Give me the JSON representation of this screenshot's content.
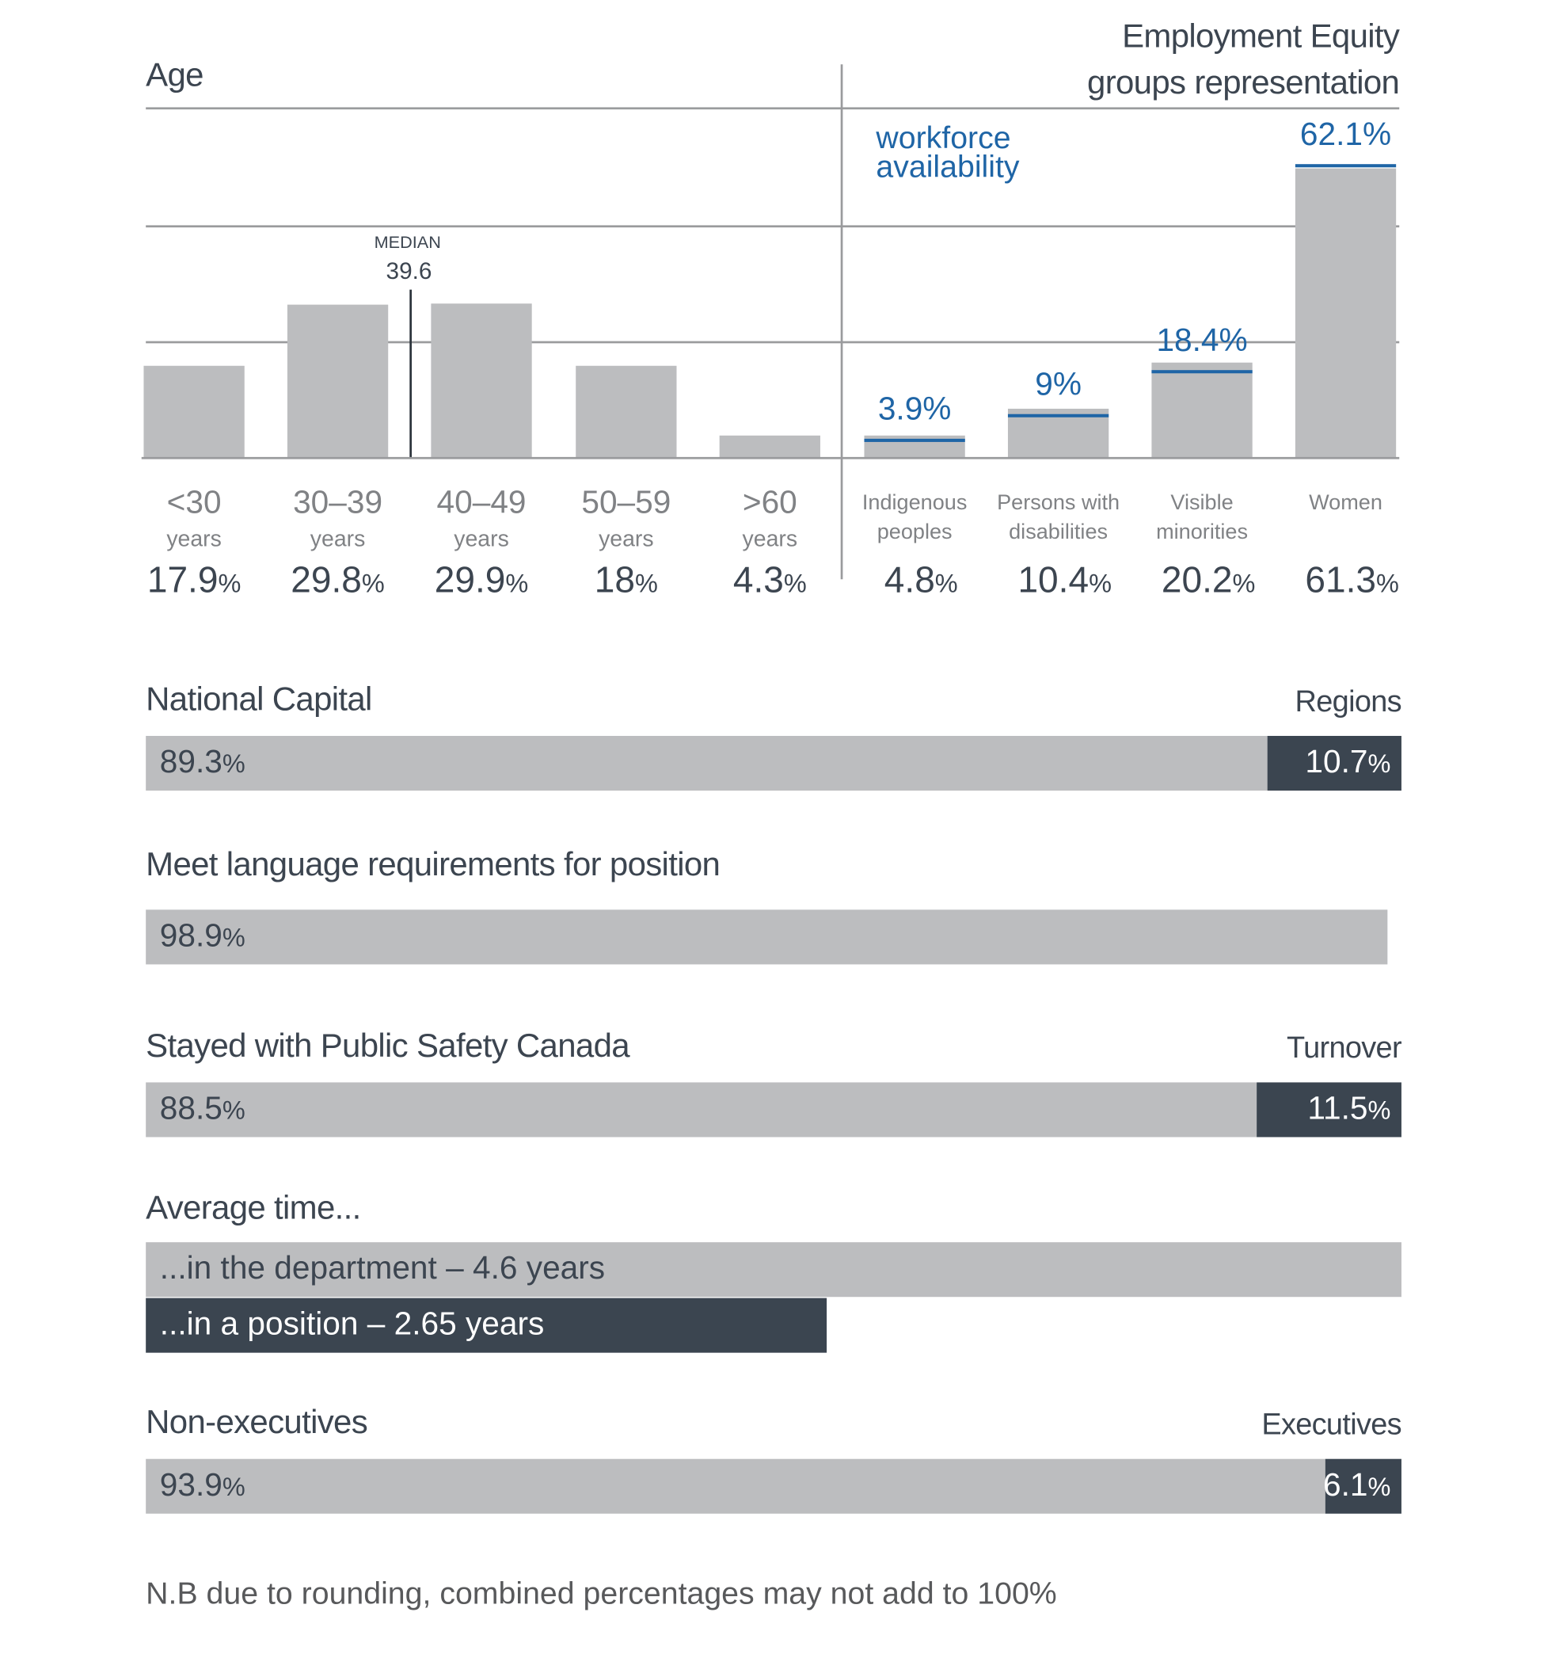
{
  "chart_data": [
    {
      "type": "bar",
      "title": "Age",
      "categories": [
        [
          "<30",
          "years"
        ],
        [
          "30–39",
          "years"
        ],
        [
          "40–49",
          "years"
        ],
        [
          "50–59",
          "years"
        ],
        [
          ">60",
          "years"
        ]
      ],
      "values": [
        17.9,
        29.8,
        29.9,
        18,
        4.3
      ],
      "value_labels": [
        "17.9",
        "29.8",
        "29.9",
        "18",
        "4.3"
      ],
      "unit": "%",
      "median": {
        "label": "MEDIAN",
        "value": "39.6"
      },
      "grid": true
    },
    {
      "type": "bar",
      "title": [
        "Employment Equity",
        "groups representation"
      ],
      "categories": [
        [
          "Indigenous",
          "peoples"
        ],
        [
          "Persons with",
          "disabilities"
        ],
        [
          "Visible",
          "minorities"
        ],
        [
          "Women",
          ""
        ]
      ],
      "values": [
        4.8,
        10.4,
        20.2,
        61.3
      ],
      "value_labels": [
        "4.8",
        "10.4",
        "20.2",
        "61.3"
      ],
      "unit": "%",
      "workforce_availability": {
        "label": [
          "workforce",
          "availability"
        ],
        "values": [
          3.9,
          9,
          18.4,
          62.1
        ],
        "value_labels": [
          "3.9%",
          "9%",
          "18.4%",
          "62.1%"
        ],
        "color": "#1f65a6"
      }
    },
    {
      "type": "bar",
      "orientation": "horizontal-stacked",
      "rows": [
        {
          "left_title": "National Capital",
          "right_title": "Regions",
          "segments": [
            {
              "value": 89.3,
              "label": "89.3",
              "color": "#bcbdbf"
            },
            {
              "value": 10.7,
              "label": "10.7",
              "color": "#3b4550"
            }
          ]
        },
        {
          "left_title": "Meet language requirements for position",
          "right_title": "",
          "segments": [
            {
              "value": 98.9,
              "label": "98.9",
              "color": "#bcbdbf"
            }
          ]
        },
        {
          "left_title": "Stayed with Public Safety Canada",
          "right_title": "Turnover",
          "segments": [
            {
              "value": 88.5,
              "label": "88.5",
              "color": "#bcbdbf"
            },
            {
              "value": 11.5,
              "label": "11.5",
              "color": "#3b4550"
            }
          ]
        },
        {
          "left_title": "Non-executives",
          "right_title": "Executives",
          "segments": [
            {
              "value": 93.9,
              "label": "93.9",
              "color": "#bcbdbf"
            },
            {
              "value": 6.1,
              "label": "6.1",
              "color": "#3b4550"
            }
          ]
        }
      ],
      "unit": "%"
    },
    {
      "type": "bar",
      "orientation": "horizontal",
      "title": "Average time...",
      "bars": [
        {
          "label": "...in the department – 4.6 years",
          "value": 4.6,
          "color": "#bcbdbf"
        },
        {
          "label": "...in a position – 2.65 years",
          "value": 2.65,
          "color": "#3b4550"
        }
      ]
    }
  ],
  "footnote": "N.B due to rounding, combined percentages may not add to 100%"
}
